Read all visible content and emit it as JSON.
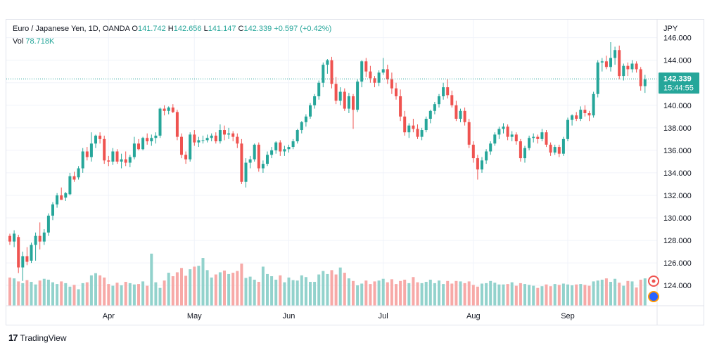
{
  "legend": {
    "symbol": "Euro / Japanese Yen, 1D, OANDA",
    "o_label": "O",
    "o_value": "141.742",
    "h_label": "H",
    "h_value": "142.656",
    "l_label": "L",
    "l_value": "141.147",
    "c_label": "C",
    "c_value": "142.339",
    "change": "+0.597 (+0.42%)",
    "vol_label": "Vol",
    "vol_value": "78.718K"
  },
  "price_tag": {
    "price": "142.339",
    "countdown": "15:44:55"
  },
  "branding": {
    "logo_icon": "tradingview-logo-icon",
    "name": "TradingView"
  },
  "colors": {
    "up": "#26a69a",
    "down": "#ef5350",
    "up_vol": "#92d2cc",
    "down_vol": "#f7a9a7",
    "grid": "#f0f3fa"
  },
  "chart_data": {
    "type": "candlestick",
    "currency_label": "JPY",
    "ylim": [
      122.2,
      147.6
    ],
    "y_ticks": [
      "146.000",
      "144.000",
      "142.000",
      "140.000",
      "138.000",
      "136.000",
      "134.000",
      "132.000",
      "130.000",
      "128.000",
      "126.000",
      "124.000"
    ],
    "x_ticks": [
      {
        "label": "Apr",
        "index": 23
      },
      {
        "label": "May",
        "index": 43
      },
      {
        "label": "Jun",
        "index": 65
      },
      {
        "label": "Jul",
        "index": 87
      },
      {
        "label": "Aug",
        "index": 108
      },
      {
        "label": "Sep",
        "index": 130
      }
    ],
    "last_price": 142.339,
    "candles": [
      [
        128.4,
        128.6,
        127.6,
        127.9
      ],
      [
        127.9,
        128.9,
        127.4,
        128.6
      ],
      [
        128.3,
        128.5,
        125.1,
        125.6
      ],
      [
        125.6,
        127.0,
        124.4,
        126.6
      ],
      [
        126.6,
        127.4,
        125.8,
        126.1
      ],
      [
        126.2,
        127.8,
        126.0,
        127.6
      ],
      [
        127.6,
        128.7,
        126.2,
        128.4
      ],
      [
        128.4,
        129.6,
        127.2,
        127.9
      ],
      [
        127.9,
        129.0,
        127.6,
        128.7
      ],
      [
        128.7,
        130.4,
        128.4,
        130.2
      ],
      [
        130.2,
        131.4,
        129.8,
        131.2
      ],
      [
        131.2,
        132.2,
        130.9,
        132.0
      ],
      [
        132.0,
        132.7,
        131.6,
        131.6
      ],
      [
        131.8,
        132.3,
        131.5,
        132.2
      ],
      [
        132.1,
        134.0,
        132.0,
        133.7
      ],
      [
        133.7,
        134.1,
        133.2,
        133.4
      ],
      [
        133.6,
        134.6,
        133.4,
        134.4
      ],
      [
        134.4,
        136.2,
        134.0,
        135.9
      ],
      [
        135.9,
        136.3,
        135.1,
        135.4
      ],
      [
        135.4,
        137.6,
        135.0,
        136.6
      ],
      [
        136.6,
        137.4,
        136.2,
        137.3
      ],
      [
        137.3,
        137.6,
        136.6,
        137.0
      ],
      [
        137.0,
        137.3,
        134.8,
        135.1
      ],
      [
        135.1,
        135.5,
        134.6,
        135.0
      ],
      [
        135.0,
        136.2,
        134.7,
        135.9
      ],
      [
        135.9,
        136.1,
        134.8,
        135.0
      ],
      [
        135.0,
        135.7,
        134.4,
        135.2
      ],
      [
        135.2,
        135.9,
        134.6,
        134.9
      ],
      [
        134.9,
        135.6,
        134.5,
        135.4
      ],
      [
        135.4,
        137.2,
        135.2,
        136.6
      ],
      [
        136.6,
        137.0,
        136.0,
        136.1
      ],
      [
        136.1,
        137.2,
        136.0,
        137.1
      ],
      [
        137.1,
        137.5,
        136.5,
        136.8
      ],
      [
        136.8,
        137.4,
        136.4,
        137.1
      ],
      [
        137.1,
        137.6,
        136.6,
        137.3
      ],
      [
        137.3,
        139.8,
        137.1,
        139.7
      ],
      [
        139.7,
        140.0,
        139.1,
        139.5
      ],
      [
        139.5,
        139.9,
        139.2,
        139.8
      ],
      [
        139.8,
        140.1,
        139.3,
        139.4
      ],
      [
        139.4,
        139.6,
        136.9,
        137.2
      ],
      [
        137.2,
        137.5,
        135.3,
        135.6
      ],
      [
        135.6,
        135.9,
        134.8,
        135.2
      ],
      [
        135.2,
        137.6,
        135.0,
        137.4
      ],
      [
        137.4,
        137.8,
        136.4,
        136.7
      ],
      [
        136.7,
        137.2,
        136.3,
        136.9
      ],
      [
        136.9,
        137.3,
        136.6,
        136.9
      ],
      [
        136.9,
        137.4,
        136.7,
        137.1
      ],
      [
        137.1,
        137.5,
        136.8,
        137.3
      ],
      [
        137.3,
        137.6,
        136.6,
        136.8
      ],
      [
        136.8,
        138.3,
        136.6,
        137.8
      ],
      [
        137.8,
        138.2,
        136.9,
        137.4
      ],
      [
        137.4,
        138.0,
        137.0,
        137.5
      ],
      [
        137.5,
        137.7,
        136.8,
        137.2
      ],
      [
        137.2,
        137.5,
        136.2,
        136.6
      ],
      [
        136.6,
        137.0,
        133.0,
        133.2
      ],
      [
        133.2,
        135.3,
        132.7,
        134.9
      ],
      [
        134.9,
        135.5,
        134.4,
        135.2
      ],
      [
        135.2,
        136.6,
        135.0,
        136.5
      ],
      [
        136.5,
        136.7,
        134.1,
        134.4
      ],
      [
        134.4,
        135.1,
        134.0,
        134.8
      ],
      [
        134.8,
        135.9,
        134.6,
        135.6
      ],
      [
        135.6,
        136.3,
        135.3,
        136.0
      ],
      [
        136.0,
        136.8,
        135.7,
        136.7
      ],
      [
        136.7,
        136.9,
        135.5,
        135.9
      ],
      [
        135.9,
        136.4,
        135.5,
        136.1
      ],
      [
        136.1,
        136.5,
        135.8,
        136.3
      ],
      [
        136.3,
        137.0,
        136.1,
        136.8
      ],
      [
        136.8,
        137.9,
        136.6,
        137.8
      ],
      [
        137.8,
        138.6,
        137.5,
        138.5
      ],
      [
        138.5,
        139.2,
        138.1,
        139.0
      ],
      [
        139.0,
        140.2,
        138.8,
        140.0
      ],
      [
        140.0,
        141.0,
        139.7,
        140.8
      ],
      [
        140.8,
        142.2,
        140.5,
        142.0
      ],
      [
        142.0,
        143.8,
        141.6,
        143.6
      ],
      [
        143.6,
        144.1,
        142.8,
        144.0
      ],
      [
        144.0,
        144.3,
        141.5,
        141.9
      ],
      [
        141.9,
        142.5,
        140.1,
        140.4
      ],
      [
        140.4,
        141.6,
        140.0,
        141.2
      ],
      [
        141.2,
        141.5,
        139.5,
        139.7
      ],
      [
        139.7,
        141.1,
        139.3,
        140.8
      ],
      [
        140.8,
        141.0,
        137.9,
        139.6
      ],
      [
        139.6,
        142.3,
        139.4,
        142.1
      ],
      [
        142.1,
        144.0,
        141.6,
        143.9
      ],
      [
        143.9,
        144.2,
        142.5,
        143.0
      ],
      [
        143.0,
        143.5,
        142.0,
        142.4
      ],
      [
        142.4,
        142.6,
        141.6,
        142.0
      ],
      [
        142.0,
        143.1,
        141.7,
        142.9
      ],
      [
        142.9,
        144.2,
        142.7,
        143.2
      ],
      [
        143.2,
        143.6,
        141.9,
        142.3
      ],
      [
        142.3,
        142.9,
        141.0,
        141.5
      ],
      [
        141.5,
        142.0,
        140.5,
        140.8
      ],
      [
        140.8,
        141.4,
        138.6,
        139.0
      ],
      [
        139.0,
        139.5,
        137.3,
        137.6
      ],
      [
        137.6,
        138.4,
        137.1,
        138.2
      ],
      [
        138.2,
        138.8,
        137.6,
        137.9
      ],
      [
        137.9,
        138.3,
        137.0,
        137.2
      ],
      [
        137.2,
        138.0,
        136.9,
        137.8
      ],
      [
        137.8,
        139.0,
        137.6,
        138.8
      ],
      [
        138.8,
        139.6,
        138.4,
        139.5
      ],
      [
        139.5,
        140.3,
        139.2,
        140.1
      ],
      [
        140.1,
        141.0,
        139.8,
        140.8
      ],
      [
        140.8,
        142.0,
        140.5,
        141.6
      ],
      [
        141.6,
        142.3,
        140.6,
        140.9
      ],
      [
        140.9,
        141.3,
        139.8,
        140.0
      ],
      [
        140.0,
        140.4,
        138.6,
        138.8
      ],
      [
        138.8,
        139.7,
        138.5,
        139.5
      ],
      [
        139.5,
        139.8,
        138.2,
        138.5
      ],
      [
        138.5,
        138.8,
        136.2,
        136.5
      ],
      [
        136.5,
        136.8,
        134.9,
        135.3
      ],
      [
        135.3,
        135.6,
        133.4,
        134.3
      ],
      [
        134.3,
        135.4,
        134.0,
        135.1
      ],
      [
        135.1,
        136.1,
        134.8,
        135.9
      ],
      [
        135.9,
        136.8,
        135.6,
        136.6
      ],
      [
        136.6,
        137.6,
        136.4,
        137.4
      ],
      [
        137.4,
        138.1,
        137.0,
        137.9
      ],
      [
        137.9,
        138.4,
        137.5,
        138.1
      ],
      [
        138.1,
        138.3,
        136.9,
        137.2
      ],
      [
        137.2,
        137.7,
        136.8,
        137.4
      ],
      [
        137.4,
        137.6,
        136.5,
        136.8
      ],
      [
        136.8,
        137.0,
        135.0,
        135.3
      ],
      [
        135.3,
        136.4,
        134.9,
        136.2
      ],
      [
        136.2,
        137.3,
        136.0,
        137.1
      ],
      [
        137.1,
        137.5,
        136.7,
        137.2
      ],
      [
        137.2,
        137.4,
        136.6,
        137.0
      ],
      [
        137.0,
        137.9,
        136.8,
        137.6
      ],
      [
        137.6,
        137.8,
        136.3,
        136.5
      ],
      [
        136.5,
        136.7,
        135.5,
        135.8
      ],
      [
        135.8,
        136.5,
        135.6,
        136.3
      ],
      [
        136.3,
        136.5,
        135.4,
        135.7
      ],
      [
        135.7,
        137.2,
        135.5,
        137.0
      ],
      [
        137.0,
        138.9,
        136.8,
        138.7
      ],
      [
        138.7,
        139.2,
        138.2,
        139.1
      ],
      [
        139.1,
        139.4,
        138.6,
        138.8
      ],
      [
        138.8,
        139.9,
        138.6,
        139.6
      ],
      [
        139.6,
        140.0,
        139.0,
        139.3
      ],
      [
        139.3,
        139.5,
        138.6,
        139.1
      ],
      [
        139.1,
        141.2,
        138.9,
        141.0
      ],
      [
        141.0,
        144.0,
        140.7,
        143.8
      ],
      [
        143.8,
        144.2,
        143.0,
        143.9
      ],
      [
        143.9,
        144.4,
        143.2,
        143.4
      ],
      [
        143.4,
        145.6,
        143.0,
        144.2
      ],
      [
        144.2,
        145.2,
        143.6,
        144.9
      ],
      [
        144.9,
        145.3,
        142.3,
        142.6
      ],
      [
        142.6,
        143.7,
        142.2,
        143.5
      ],
      [
        143.5,
        143.8,
        142.6,
        143.2
      ],
      [
        143.2,
        144.0,
        142.9,
        143.7
      ],
      [
        143.7,
        143.9,
        142.9,
        143.2
      ],
      [
        143.2,
        143.4,
        141.3,
        141.7
      ],
      [
        141.7,
        142.7,
        141.1,
        142.3
      ]
    ],
    "volume_max": 17,
    "volumes": [
      6.5,
      6.3,
      5.6,
      5.2,
      5.9,
      5.5,
      4.9,
      5.8,
      6.2,
      6.0,
      5.4,
      5.0,
      5.6,
      5.2,
      4.4,
      4.8,
      3.8,
      5.2,
      5.4,
      7.0,
      7.5,
      7.0,
      6.5,
      5.0,
      4.6,
      5.3,
      4.7,
      5.5,
      5.2,
      4.9,
      5.0,
      5.6,
      4.6,
      12.0,
      5.4,
      4.1,
      5.8,
      7.6,
      6.8,
      7.7,
      8.7,
      6.9,
      8.4,
      9.0,
      9.2,
      11.0,
      8.2,
      6.5,
      7.2,
      7.7,
      8.1,
      7.3,
      7.6,
      8.0,
      9.7,
      6.4,
      6.7,
      6.0,
      5.5,
      9.0,
      7.3,
      6.8,
      6.0,
      7.0,
      5.4,
      6.5,
      5.9,
      5.8,
      7.0,
      6.6,
      5.5,
      5.5,
      7.2,
      8.0,
      7.3,
      8.2,
      7.2,
      8.8,
      7.6,
      6.3,
      5.7,
      4.7,
      5.1,
      5.8,
      5.0,
      5.6,
      5.8,
      6.2,
      5.4,
      6.1,
      5.0,
      5.7,
      6.0,
      5.2,
      6.6,
      5.4,
      5.2,
      5.5,
      6.0,
      5.2,
      5.8,
      5.0,
      5.7,
      5.1,
      5.7,
      5.6,
      5.2,
      5.6,
      4.8,
      4.4,
      5.1,
      5.2,
      5.7,
      5.3,
      4.9,
      4.9,
      5.0,
      5.4,
      4.6,
      5.2,
      5.0,
      4.8,
      4.6,
      4.1,
      4.5,
      4.9,
      4.5,
      5.0,
      4.8,
      5.1,
      4.9,
      4.7,
      4.9,
      5.0,
      4.8,
      4.6,
      5.6,
      5.8,
      6.0,
      6.3,
      5.5,
      6.2,
      5.3,
      4.6,
      5.7,
      5.6,
      4.2,
      6.0,
      6.3
    ]
  }
}
